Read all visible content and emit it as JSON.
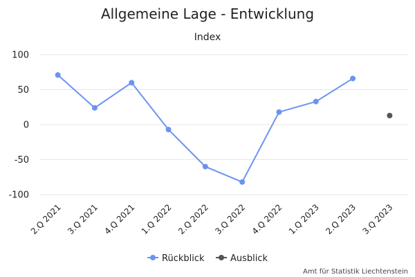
{
  "chart_data": {
    "type": "line",
    "title": "Allgemeine Lage - Entwicklung",
    "subtitle": "Index",
    "categories": [
      "2.Q 2021",
      "3.Q 2021",
      "4.Q 2021",
      "1.Q 2022",
      "2.Q 2022",
      "3.Q 2022",
      "4.Q 2022",
      "1.Q 2023",
      "2.Q 2023",
      "3.Q 2023"
    ],
    "yticks": [
      100,
      50,
      0,
      -50,
      -100
    ],
    "ylim": [
      -100,
      100
    ],
    "grid": true,
    "legend_position": "bottom",
    "series": [
      {
        "name": "Rückblick",
        "color": "#6b93f0",
        "values": [
          71,
          24,
          60,
          -7,
          -60,
          -82,
          18,
          33,
          66,
          null
        ]
      },
      {
        "name": "Ausblick",
        "color": "#555555",
        "values": [
          null,
          null,
          null,
          null,
          null,
          null,
          null,
          null,
          null,
          13
        ]
      }
    ],
    "credits": "Amt für Statistik Liechtenstein"
  }
}
